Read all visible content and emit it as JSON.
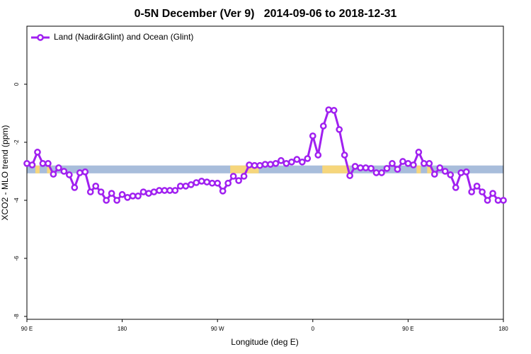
{
  "chart_data": {
    "type": "line",
    "title": "0-5N December (Ver 9)   2014-09-06 to 2018-12-31",
    "xlabel": "Longitude (deg E)",
    "ylabel": "XCO2 - MLO trend (ppm)",
    "xlim": [
      90,
      540
    ],
    "ylim": [
      -8.1,
      2
    ],
    "xticks": [
      {
        "value": 90,
        "label": "90 E"
      },
      180,
      {
        "value": 270,
        "label": "90 W"
      },
      {
        "value": 360,
        "label": "0"
      },
      {
        "value": 450,
        "label": "90 E"
      },
      {
        "value": 540,
        "label": "180"
      }
    ],
    "yticks": [
      0,
      -2,
      -4,
      -6,
      -8
    ],
    "legend": "top-left",
    "surface_band": {
      "range": [
        -3.07,
        -2.8
      ],
      "ocean_color": "#a8bddb",
      "land_color": "#f6d67c",
      "land": [
        [
          98,
          102
        ],
        [
          109,
          113
        ],
        [
          282,
          309
        ],
        [
          369,
          395
        ],
        [
          458,
          462
        ],
        [
          468,
          472
        ]
      ]
    },
    "x": [
      90,
      95,
      100,
      105,
      110,
      115,
      120,
      125,
      130,
      135,
      140,
      145,
      150,
      155,
      160,
      165,
      170,
      175,
      180,
      185,
      190,
      195,
      200,
      205,
      210,
      215,
      220,
      225,
      230,
      235,
      240,
      245,
      250,
      255,
      260,
      265,
      270,
      275,
      280,
      285,
      290,
      295,
      300,
      305,
      310,
      315,
      320,
      325,
      330,
      335,
      340,
      345,
      350,
      355,
      360,
      365,
      370,
      375,
      380,
      385,
      390,
      395,
      400,
      405,
      410,
      415,
      420,
      425,
      430,
      435,
      440,
      445,
      450,
      455,
      460,
      465,
      470,
      475,
      480,
      485,
      490,
      495,
      500,
      505,
      510,
      515,
      520,
      525,
      530,
      535,
      540
    ],
    "series": [
      {
        "name": "Land (Nadir&Glint) and Ocean (Glint)",
        "color": "#a020f0",
        "values": [
          -2.73,
          -2.78,
          -2.34,
          -2.73,
          -2.73,
          -3.1,
          -2.88,
          -3.0,
          -3.12,
          -3.56,
          -3.05,
          -3.02,
          -3.71,
          -3.51,
          -3.71,
          -4.0,
          -3.76,
          -4.0,
          -3.8,
          -3.9,
          -3.85,
          -3.85,
          -3.71,
          -3.76,
          -3.71,
          -3.66,
          -3.66,
          -3.66,
          -3.66,
          -3.51,
          -3.51,
          -3.46,
          -3.39,
          -3.34,
          -3.37,
          -3.41,
          -3.41,
          -3.68,
          -3.41,
          -3.17,
          -3.32,
          -3.17,
          -2.78,
          -2.8,
          -2.8,
          -2.76,
          -2.76,
          -2.73,
          -2.63,
          -2.73,
          -2.68,
          -2.59,
          -2.68,
          -2.56,
          -1.78,
          -2.44,
          -1.44,
          -0.88,
          -0.9,
          -1.56,
          -2.44,
          -3.15,
          -2.83,
          -2.88,
          -2.88,
          -2.9,
          -3.05,
          -3.05,
          -2.9,
          -2.73,
          -2.93,
          -2.66,
          -2.73,
          -2.78,
          -2.34,
          -2.73,
          -2.73,
          -3.1,
          -2.88,
          -3.0,
          -3.12,
          -3.56,
          -3.05,
          -3.02,
          -3.71,
          -3.51,
          -3.71,
          -4.0,
          -3.76,
          -4.0,
          -4.0
        ]
      }
    ]
  }
}
